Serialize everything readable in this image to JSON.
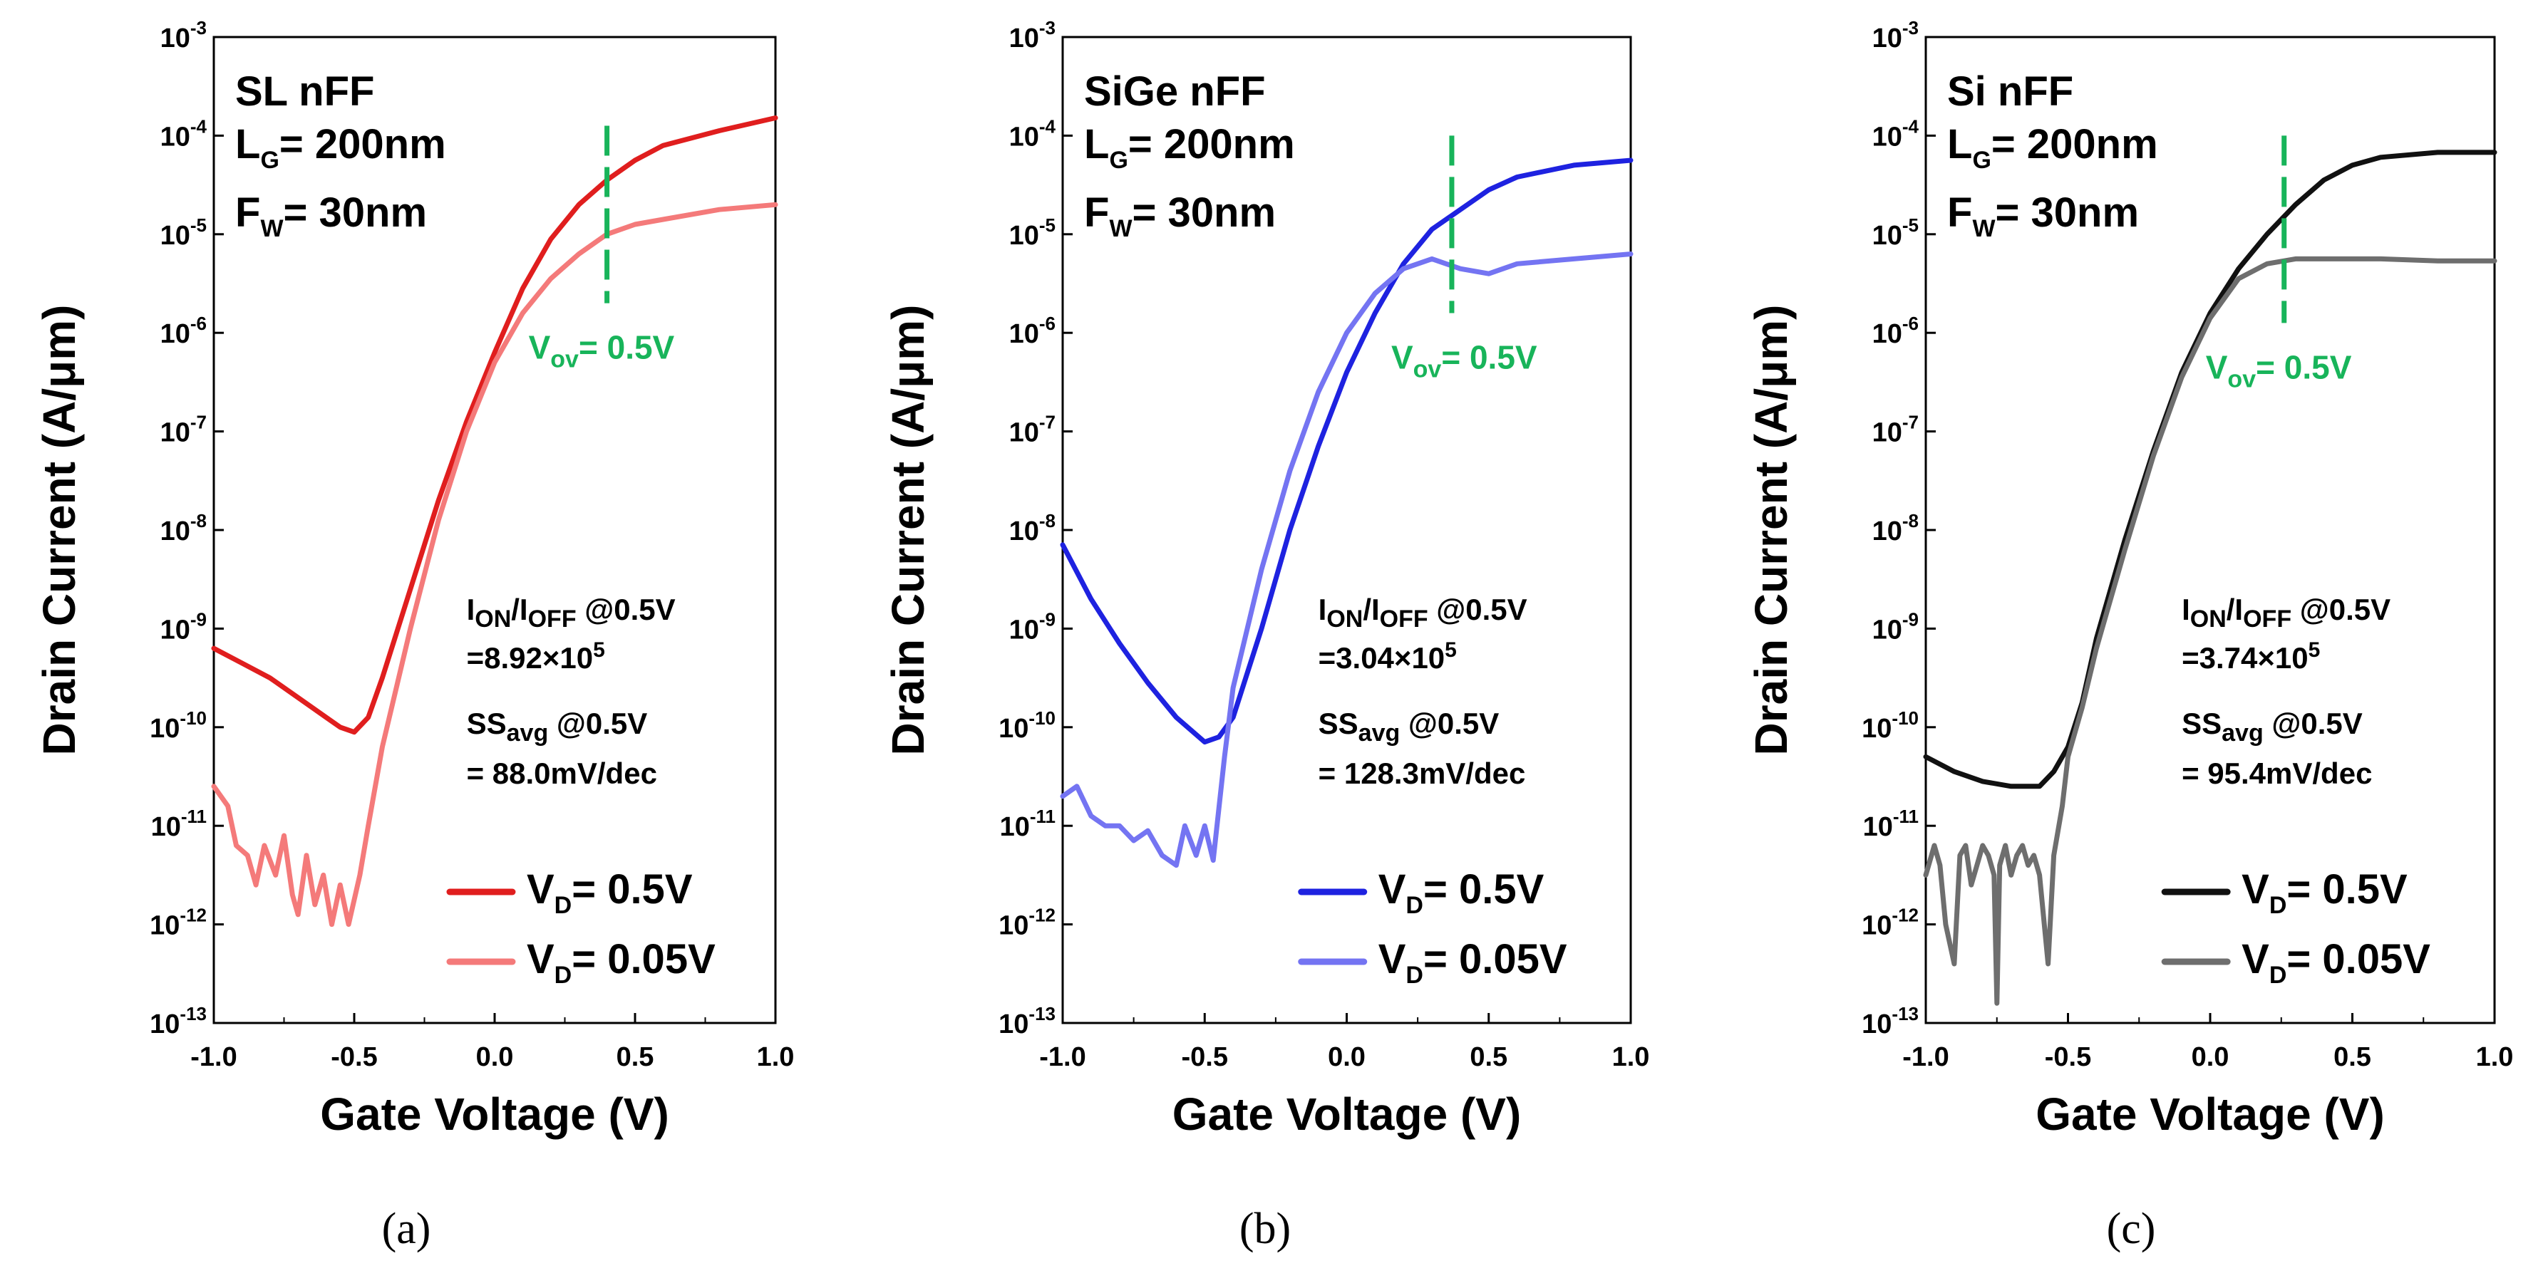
{
  "figure": {
    "panels": [
      {
        "key": "a",
        "caption": "(a)",
        "title": "SL nFF",
        "lg_var": "L",
        "lg_sub": "G",
        "lg_value": "= 200nm",
        "fw_var": "F",
        "fw_sub": "W",
        "fw_value": "= 30nm",
        "vov_var": "V",
        "vov_sub": "ov",
        "vov_value": "= 0.5V",
        "ratio_i1": "I",
        "ratio_s1": "ON",
        "ratio_sep": "/I",
        "ratio_s2": "OFF",
        "ratio_tail": " @0.5V",
        "ratio_value": "=8.92×10",
        "ratio_exp": "5",
        "ss_pre": "SS",
        "ss_sub": "avg",
        "ss_tail": " @0.5V",
        "ss_value": "= 88.0mV/dec",
        "legend": [
          {
            "v": "V",
            "sub": "D",
            "label": "= 0.5V"
          },
          {
            "v": "V",
            "sub": "D",
            "label": "= 0.05V"
          }
        ]
      },
      {
        "key": "b",
        "caption": "(b)",
        "title": "SiGe nFF",
        "lg_var": "L",
        "lg_sub": "G",
        "lg_value": "= 200nm",
        "fw_var": "F",
        "fw_sub": "W",
        "fw_value": "= 30nm",
        "vov_var": "V",
        "vov_sub": "ov",
        "vov_value": "= 0.5V",
        "ratio_i1": "I",
        "ratio_s1": "ON",
        "ratio_sep": "/I",
        "ratio_s2": "OFF",
        "ratio_tail": " @0.5V",
        "ratio_value": "=3.04×10",
        "ratio_exp": "5",
        "ss_pre": "SS",
        "ss_sub": "avg",
        "ss_tail": " @0.5V",
        "ss_value": "= 128.3mV/dec",
        "legend": [
          {
            "v": "V",
            "sub": "D",
            "label": "= 0.5V"
          },
          {
            "v": "V",
            "sub": "D",
            "label": "= 0.05V"
          }
        ]
      },
      {
        "key": "c",
        "caption": "(c)",
        "title": "Si nFF",
        "lg_var": "L",
        "lg_sub": "G",
        "lg_value": "= 200nm",
        "fw_var": "F",
        "fw_sub": "W",
        "fw_value": "= 30nm",
        "vov_var": "V",
        "vov_sub": "ov",
        "vov_value": "= 0.5V",
        "ratio_i1": "I",
        "ratio_s1": "ON",
        "ratio_sep": "/I",
        "ratio_s2": "OFF",
        "ratio_tail": " @0.5V",
        "ratio_value": "=3.74×10",
        "ratio_exp": "5",
        "ss_pre": "SS",
        "ss_sub": "avg",
        "ss_tail": " @0.5V",
        "ss_value": "= 95.4mV/dec",
        "legend": [
          {
            "v": "V",
            "sub": "D",
            "label": "= 0.5V"
          },
          {
            "v": "V",
            "sub": "D",
            "label": "= 0.05V"
          }
        ]
      }
    ]
  },
  "chart_data": [
    {
      "type": "line",
      "panel": "a",
      "title": "SL nFF",
      "xlabel": "Gate Voltage (V)",
      "ylabel": "Drain Current (A/μm)",
      "y_scale": "log",
      "xlim": [
        -1.0,
        1.0
      ],
      "ylim_exponents": [
        -13,
        -3
      ],
      "x_ticks": [
        "-1.0",
        "-0.5",
        "0.0",
        "0.5",
        "1.0"
      ],
      "y_tick_base": "10",
      "y_tick_exponents": [
        "-3",
        "-4",
        "-5",
        "-6",
        "-7",
        "-8",
        "-9",
        "-10",
        "-11",
        "-12",
        "-13"
      ],
      "vov_marker": {
        "x": 0.4,
        "y_exponent_range": [
          -5.7,
          -3.9
        ]
      },
      "series": [
        {
          "name": "VD = 0.5V",
          "color": "#e01e1e",
          "x": [
            -1.0,
            -0.9,
            -0.8,
            -0.7,
            -0.6,
            -0.55,
            -0.5,
            -0.45,
            -0.4,
            -0.3,
            -0.2,
            -0.1,
            0.0,
            0.1,
            0.2,
            0.3,
            0.4,
            0.5,
            0.6,
            0.8,
            1.0
          ],
          "log_y": [
            -9.2,
            -9.35,
            -9.5,
            -9.7,
            -9.9,
            -10.0,
            -10.05,
            -9.9,
            -9.5,
            -8.6,
            -7.7,
            -6.9,
            -6.2,
            -5.55,
            -5.05,
            -4.7,
            -4.45,
            -4.25,
            -4.1,
            -3.95,
            -3.82
          ]
        },
        {
          "name": "VD = 0.05V",
          "color": "#f47a7a",
          "x": [
            -1.0,
            -0.95,
            -0.92,
            -0.88,
            -0.85,
            -0.82,
            -0.78,
            -0.75,
            -0.72,
            -0.7,
            -0.67,
            -0.64,
            -0.61,
            -0.58,
            -0.55,
            -0.52,
            -0.48,
            -0.45,
            -0.4,
            -0.3,
            -0.2,
            -0.1,
            0.0,
            0.1,
            0.2,
            0.3,
            0.4,
            0.5,
            0.6,
            0.8,
            1.0
          ],
          "log_y": [
            -10.6,
            -10.8,
            -11.2,
            -11.3,
            -11.6,
            -11.2,
            -11.5,
            -11.1,
            -11.7,
            -11.9,
            -11.3,
            -11.8,
            -11.5,
            -12.0,
            -11.6,
            -12.0,
            -11.5,
            -11.0,
            -10.2,
            -9.0,
            -7.9,
            -7.0,
            -6.3,
            -5.8,
            -5.45,
            -5.2,
            -5.0,
            -4.9,
            -4.85,
            -4.75,
            -4.7
          ]
        }
      ]
    },
    {
      "type": "line",
      "panel": "b",
      "title": "SiGe nFF",
      "xlabel": "Gate Voltage (V)",
      "ylabel": "Drain Current (A/μm)",
      "y_scale": "log",
      "xlim": [
        -1.0,
        1.0
      ],
      "ylim_exponents": [
        -13,
        -3
      ],
      "x_ticks": [
        "-1.0",
        "-0.5",
        "0.0",
        "0.5",
        "1.0"
      ],
      "y_tick_base": "10",
      "y_tick_exponents": [
        "-3",
        "-4",
        "-5",
        "-6",
        "-7",
        "-8",
        "-9",
        "-10",
        "-11",
        "-12",
        "-13"
      ],
      "vov_marker": {
        "x": 0.37,
        "y_exponent_range": [
          -5.8,
          -4.0
        ]
      },
      "series": [
        {
          "name": "VD = 0.5V",
          "color": "#1e22e0",
          "x": [
            -1.0,
            -0.9,
            -0.8,
            -0.7,
            -0.6,
            -0.5,
            -0.45,
            -0.4,
            -0.3,
            -0.2,
            -0.1,
            0.0,
            0.1,
            0.2,
            0.3,
            0.4,
            0.5,
            0.6,
            0.8,
            1.0
          ],
          "log_y": [
            -8.15,
            -8.7,
            -9.15,
            -9.55,
            -9.9,
            -10.15,
            -10.1,
            -9.9,
            -9.0,
            -8.0,
            -7.15,
            -6.4,
            -5.8,
            -5.3,
            -4.95,
            -4.75,
            -4.55,
            -4.42,
            -4.3,
            -4.25
          ]
        },
        {
          "name": "VD = 0.05V",
          "color": "#7474f2",
          "x": [
            -1.0,
            -0.95,
            -0.9,
            -0.85,
            -0.8,
            -0.75,
            -0.7,
            -0.65,
            -0.6,
            -0.57,
            -0.53,
            -0.5,
            -0.47,
            -0.43,
            -0.4,
            -0.3,
            -0.2,
            -0.1,
            0.0,
            0.1,
            0.2,
            0.3,
            0.4,
            0.5,
            0.6,
            0.8,
            1.0
          ],
          "log_y": [
            -10.7,
            -10.6,
            -10.9,
            -11.0,
            -11.0,
            -11.15,
            -11.05,
            -11.3,
            -11.4,
            -11.0,
            -11.3,
            -11.0,
            -11.35,
            -10.3,
            -9.6,
            -8.4,
            -7.4,
            -6.6,
            -6.0,
            -5.6,
            -5.35,
            -5.25,
            -5.35,
            -5.4,
            -5.3,
            -5.25,
            -5.2
          ]
        }
      ]
    },
    {
      "type": "line",
      "panel": "c",
      "title": "Si nFF",
      "xlabel": "Gate Voltage (V)",
      "ylabel": "Drain Current (A/μm)",
      "y_scale": "log",
      "xlim": [
        -1.0,
        1.0
      ],
      "ylim_exponents": [
        -13,
        -3
      ],
      "x_ticks": [
        "-1.0",
        "-0.5",
        "0.0",
        "0.5",
        "1.0"
      ],
      "y_tick_base": "10",
      "y_tick_exponents": [
        "-3",
        "-4",
        "-5",
        "-6",
        "-7",
        "-8",
        "-9",
        "-10",
        "-11",
        "-12",
        "-13"
      ],
      "vov_marker": {
        "x": 0.26,
        "y_exponent_range": [
          -5.9,
          -4.0
        ]
      },
      "series": [
        {
          "name": "VD = 0.5V",
          "color": "#111111",
          "x": [
            -1.0,
            -0.9,
            -0.8,
            -0.7,
            -0.6,
            -0.55,
            -0.5,
            -0.45,
            -0.4,
            -0.3,
            -0.2,
            -0.1,
            0.0,
            0.1,
            0.2,
            0.3,
            0.4,
            0.5,
            0.6,
            0.8,
            1.0
          ],
          "log_y": [
            -10.3,
            -10.45,
            -10.55,
            -10.6,
            -10.6,
            -10.45,
            -10.2,
            -9.75,
            -9.1,
            -8.1,
            -7.2,
            -6.4,
            -5.8,
            -5.35,
            -5.0,
            -4.7,
            -4.45,
            -4.3,
            -4.22,
            -4.17,
            -4.17
          ]
        },
        {
          "name": "VD = 0.05V",
          "color": "#6e6e6e",
          "x": [
            -1.0,
            -0.97,
            -0.95,
            -0.93,
            -0.9,
            -0.88,
            -0.86,
            -0.84,
            -0.82,
            -0.8,
            -0.78,
            -0.76,
            -0.75,
            -0.74,
            -0.72,
            -0.7,
            -0.68,
            -0.66,
            -0.64,
            -0.62,
            -0.6,
            -0.58,
            -0.57,
            -0.55,
            -0.52,
            -0.5,
            -0.45,
            -0.4,
            -0.3,
            -0.2,
            -0.1,
            0.0,
            0.1,
            0.2,
            0.3,
            0.4,
            0.5,
            0.6,
            0.8,
            1.0
          ],
          "log_y": [
            -11.5,
            -11.2,
            -11.4,
            -12.0,
            -12.4,
            -11.3,
            -11.2,
            -11.6,
            -11.4,
            -11.2,
            -11.3,
            -11.5,
            -12.8,
            -11.4,
            -11.2,
            -11.5,
            -11.3,
            -11.2,
            -11.4,
            -11.3,
            -11.5,
            -12.1,
            -12.4,
            -11.3,
            -10.8,
            -10.3,
            -9.8,
            -9.2,
            -8.2,
            -7.25,
            -6.45,
            -5.85,
            -5.45,
            -5.3,
            -5.25,
            -5.25,
            -5.25,
            -5.25,
            -5.27,
            -5.27
          ]
        }
      ]
    }
  ]
}
